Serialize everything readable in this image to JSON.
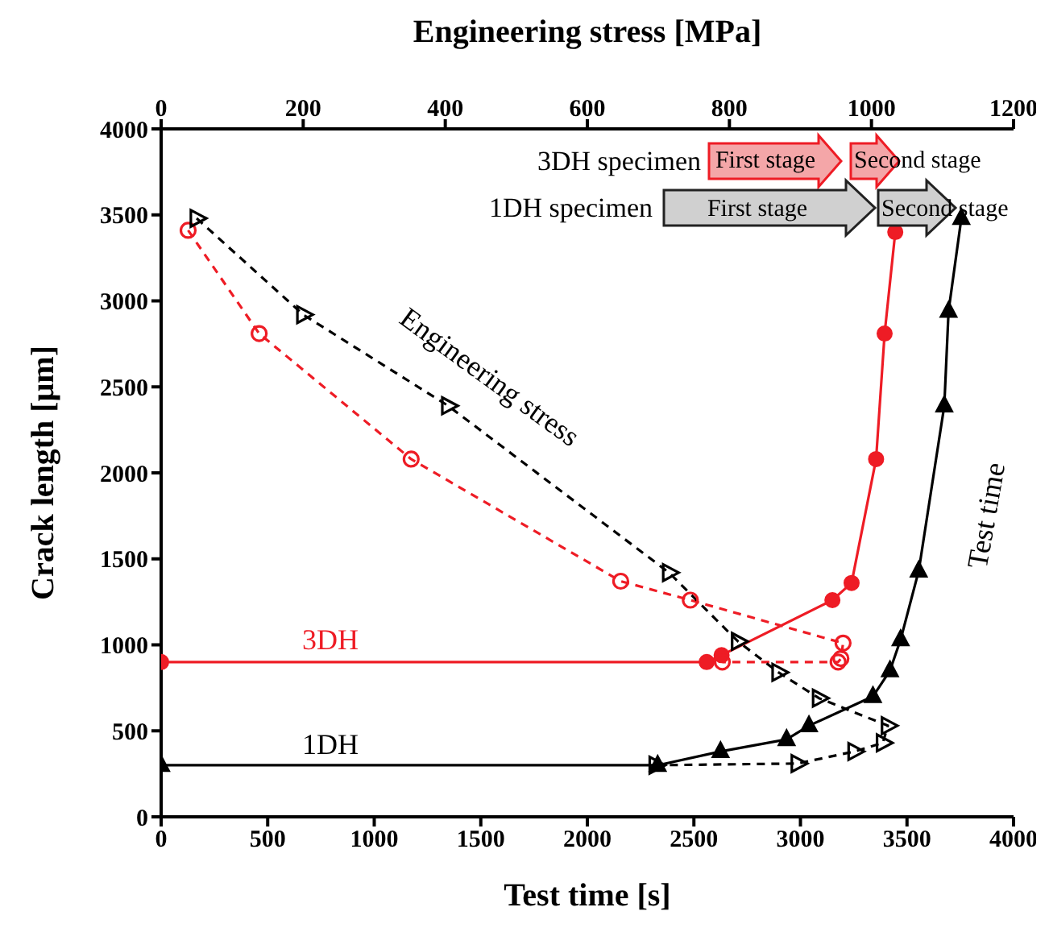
{
  "chart_data": {
    "type": "line",
    "xlabel": "Test time [s]",
    "x2label": "Engineering stress [MPa]",
    "ylabel": "Crack length [μm]",
    "xlim": [
      0,
      4000
    ],
    "xticks": [
      0,
      500,
      1000,
      1500,
      2000,
      2500,
      3000,
      3500,
      4000
    ],
    "x2lim": [
      0,
      1200
    ],
    "x2ticks": [
      0,
      200,
      400,
      600,
      800,
      1000,
      1200
    ],
    "ylim": [
      0,
      4000
    ],
    "yticks": [
      0,
      500,
      1000,
      1500,
      2000,
      2500,
      3000,
      3500,
      4000
    ],
    "grid": false,
    "legend": false,
    "series": [
      {
        "color": "#ee1c25",
        "marker": "circle",
        "line_style": "solid",
        "x": [
          0,
          2560,
          2630,
          3150,
          3240,
          3355,
          3395,
          3445
        ],
        "values": [
          900,
          900,
          940,
          1260,
          1360,
          2080,
          2810,
          3400
        ]
      },
      {
        "color": "#000000",
        "marker": "triangle",
        "line_style": "solid",
        "x": [
          0,
          2330,
          2625,
          2935,
          3040,
          3340,
          3420,
          3470,
          3555,
          3675,
          3695,
          3755
        ],
        "values": [
          300,
          300,
          380,
          450,
          530,
          700,
          850,
          1030,
          1430,
          2390,
          2940,
          3480
        ]
      },
      {
        "color": "#ee1c25",
        "marker": "circle",
        "line_style": "dashed",
        "axis": "x2",
        "x": [
          38,
          138,
          352,
          647,
          745,
          960,
          957,
          953,
          790
        ],
        "values": [
          3410,
          2810,
          2080,
          1370,
          1260,
          1010,
          920,
          900,
          900
        ]
      },
      {
        "color": "#000000",
        "marker": "triangle",
        "line_style": "dashed",
        "axis": "x2",
        "x": [
          50,
          200,
          404,
          715,
          812,
          869,
          926,
          1023,
          1016,
          976,
          896,
          696
        ],
        "values": [
          3480,
          2920,
          2390,
          1420,
          1020,
          840,
          690,
          530,
          430,
          380,
          310,
          300
        ]
      }
    ],
    "annotations": [
      "3DH",
      "1DH",
      "Engineering stress",
      "Test time",
      "3DH specimen",
      "First stage",
      "Second stage",
      "1DH specimen",
      "First stage",
      "Second stage"
    ]
  }
}
